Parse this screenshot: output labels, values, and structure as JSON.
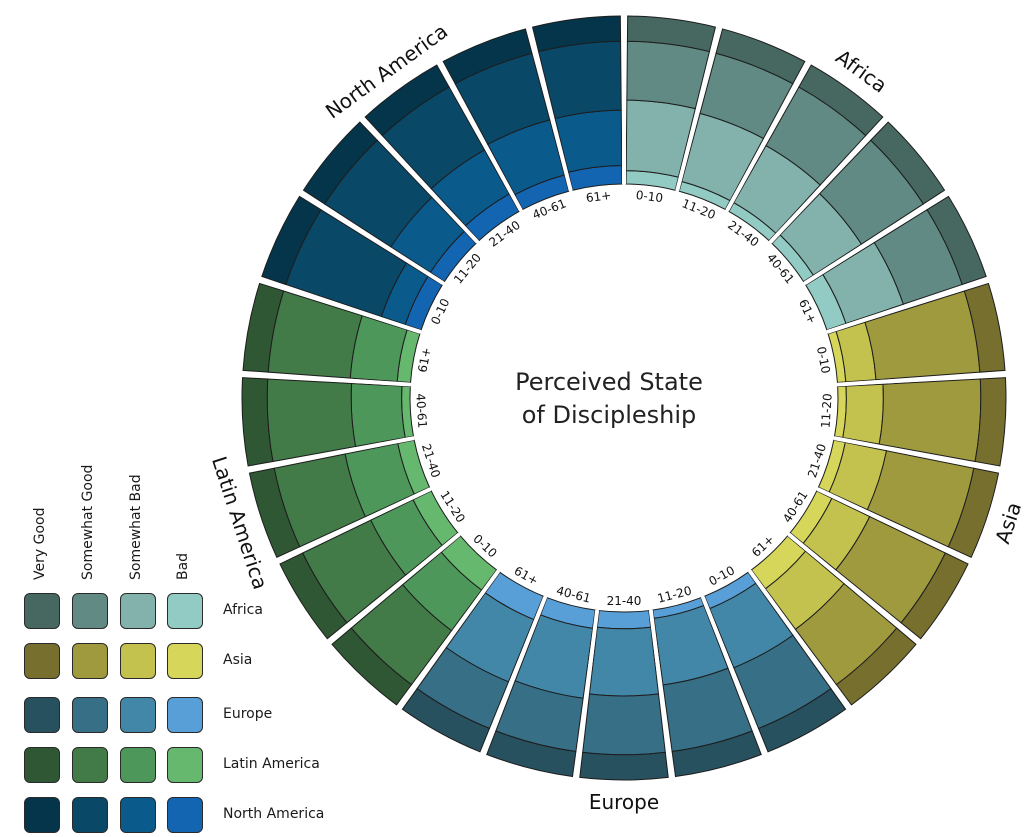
{
  "chart_data": {
    "type": "radial-stacked-bar",
    "title": "Perceived State of Discipleship",
    "categories": [
      "0-10",
      "11-20",
      "21-40",
      "40-61",
      "61+"
    ],
    "levels": [
      "Bad",
      "Somewhat Bad",
      "Somewhat Good",
      "Very Good"
    ],
    "regions": [
      {
        "name": "Africa",
        "colors": [
          "#92cac4",
          "#82b2ab",
          "#608a83",
          "#466860"
        ],
        "values": [
          [
            8,
            42,
            35,
            15
          ],
          [
            6,
            42,
            37,
            15
          ],
          [
            6,
            39,
            40,
            15
          ],
          [
            7,
            34,
            44,
            15
          ],
          [
            12,
            36,
            37,
            15
          ]
        ]
      },
      {
        "name": "Asia",
        "colors": [
          "#d5d65a",
          "#c4c24f",
          "#a09a3f",
          "#766f2d"
        ],
        "values": [
          [
            5,
            18,
            62,
            15
          ],
          [
            5,
            22,
            58,
            15
          ],
          [
            7,
            25,
            53,
            15
          ],
          [
            10,
            25,
            50,
            15
          ],
          [
            14,
            30,
            41,
            15
          ]
        ]
      },
      {
        "name": "Europe",
        "colors": [
          "#579fd6",
          "#4287a8",
          "#376f87",
          "#28515f"
        ],
        "values": [
          [
            8,
            38,
            39,
            15
          ],
          [
            5,
            40,
            40,
            15
          ],
          [
            10,
            40,
            35,
            15
          ],
          [
            11,
            42,
            32,
            15
          ],
          [
            15,
            40,
            30,
            15
          ]
        ]
      },
      {
        "name": "Latin America",
        "colors": [
          "#67b86f",
          "#4e975a",
          "#427a48",
          "#2f5733"
        ],
        "values": [
          [
            15,
            30,
            40,
            15
          ],
          [
            12,
            28,
            45,
            15
          ],
          [
            10,
            32,
            43,
            15
          ],
          [
            5,
            30,
            50,
            15
          ],
          [
            8,
            28,
            49,
            15
          ]
        ]
      },
      {
        "name": "North America",
        "colors": [
          "#1465b1",
          "#0a5a8c",
          "#0a4868",
          "#05354a"
        ],
        "values": [
          [
            10,
            15,
            60,
            15
          ],
          [
            10,
            28,
            47,
            15
          ],
          [
            12,
            30,
            43,
            15
          ],
          [
            10,
            34,
            41,
            15
          ],
          [
            11,
            33,
            41,
            15
          ]
        ]
      }
    ]
  },
  "legend": {
    "headers": [
      "Very Good",
      "Somewhat Good",
      "Somewhat Bad",
      "Bad"
    ],
    "rows": [
      {
        "name": "Africa",
        "colors": [
          "#466860",
          "#608a83",
          "#82b2ab",
          "#92cac4"
        ]
      },
      {
        "name": "Asia",
        "colors": [
          "#766f2d",
          "#a09a3f",
          "#c4c24f",
          "#d5d65a"
        ]
      },
      {
        "name": "Europe",
        "colors": [
          "#28515f",
          "#376f87",
          "#4287a8",
          "#579fd6"
        ]
      },
      {
        "name": "Latin America",
        "colors": [
          "#2f5733",
          "#427a48",
          "#4e975a",
          "#67b86f"
        ]
      },
      {
        "name": "North America",
        "colors": [
          "#05354a",
          "#0a4868",
          "#0a5a8c",
          "#1465b1"
        ]
      }
    ]
  }
}
